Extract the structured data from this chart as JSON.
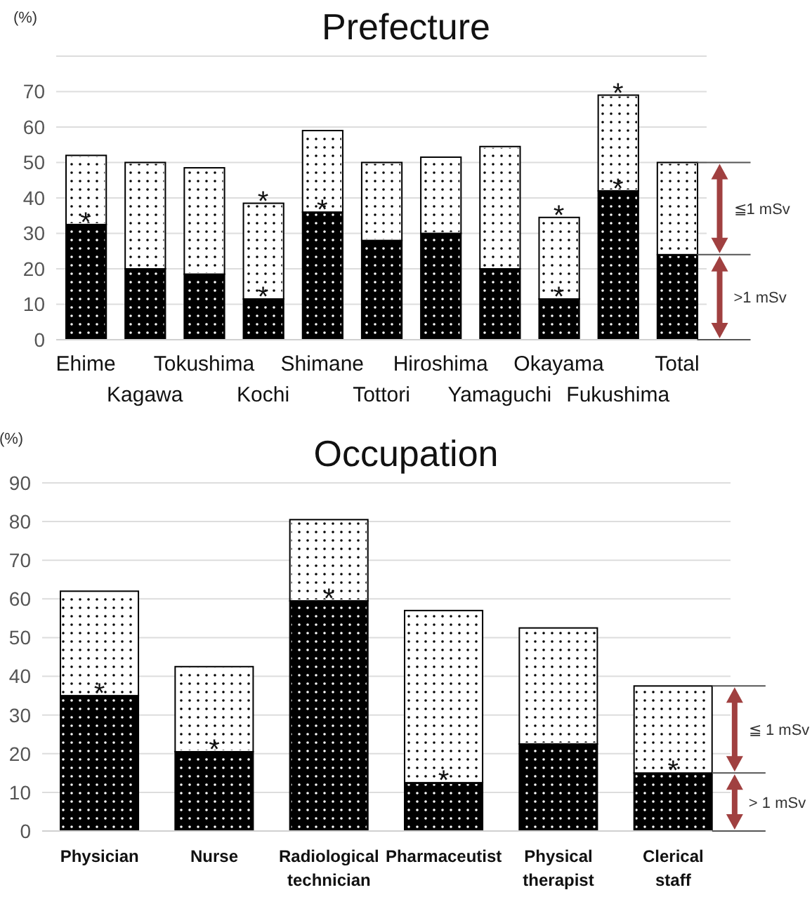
{
  "chart_data": [
    {
      "type": "bar",
      "title": "Prefecture",
      "ylabel": "(%)",
      "stacked": true,
      "grid": "y",
      "categories": [
        "Ehime",
        "Kagawa",
        "Tokushima",
        "Kochi",
        "Shimane",
        "Tottori",
        "Hiroshima",
        "Yamaguchi",
        "Okayama",
        "Fukushima",
        "Total"
      ],
      "series": [
        {
          "name": ">1 mSv",
          "color": "#000000",
          "values": [
            32.5,
            20,
            18.5,
            11.5,
            36,
            28,
            30,
            20,
            11.5,
            42,
            24
          ]
        },
        {
          "name": "≦1 mSv",
          "color": "#ffffff",
          "values": [
            19.5,
            30,
            30,
            27,
            23,
            22,
            21.5,
            34.5,
            23,
            27,
            26
          ]
        }
      ],
      "ylim": [
        0,
        80
      ],
      "yticks": [
        0,
        10,
        20,
        30,
        40,
        50,
        60,
        70,
        {
          "value": 80,
          "label": null
        }
      ],
      "annotations": [
        {
          "text": "*",
          "x": "Ehime",
          "y": 32.5
        },
        {
          "text": "*",
          "x": "Kochi",
          "y": 38.5
        },
        {
          "text": "*",
          "x": "Kochi",
          "y": 11.5
        },
        {
          "text": "*",
          "x": "Shimane",
          "y": 36
        },
        {
          "text": "*",
          "x": "Okayama",
          "y": 34.5
        },
        {
          "text": "*",
          "x": "Okayama",
          "y": 11.5
        },
        {
          "text": "*",
          "x": "Fukushima",
          "y": 69
        },
        {
          "text": "*",
          "x": "Fukushima",
          "y": 42
        }
      ]
    },
    {
      "type": "bar",
      "title": "Occupation",
      "ylabel": "(%)",
      "stacked": true,
      "grid": "y",
      "categories": [
        "Physician",
        "Nurse",
        "Radiological technician",
        "Pharmaceutist",
        "Physical therapist",
        "Clerical staff"
      ],
      "series": [
        {
          "name": "> 1 mSv",
          "color": "#000000",
          "values": [
            35,
            20.5,
            59.5,
            12.5,
            22.5,
            15
          ]
        },
        {
          "name": "≦ 1 mSv",
          "color": "#ffffff",
          "values": [
            27,
            22,
            21,
            44.5,
            30,
            22.5
          ]
        }
      ],
      "ylim": [
        0,
        90
      ],
      "yticks": [
        0,
        10,
        20,
        30,
        40,
        50,
        60,
        70,
        80,
        90
      ],
      "annotations": [
        {
          "text": "*",
          "x": "Physician",
          "y": 35
        },
        {
          "text": "*",
          "x": "Nurse",
          "y": 20.5
        },
        {
          "text": "*",
          "x": "Radiological technician",
          "y": 59.5
        },
        {
          "text": "*",
          "x": "Pharmaceutist",
          "y": 12.5
        },
        {
          "text": "*",
          "x": "Clerical staff",
          "y": 15
        }
      ]
    }
  ]
}
